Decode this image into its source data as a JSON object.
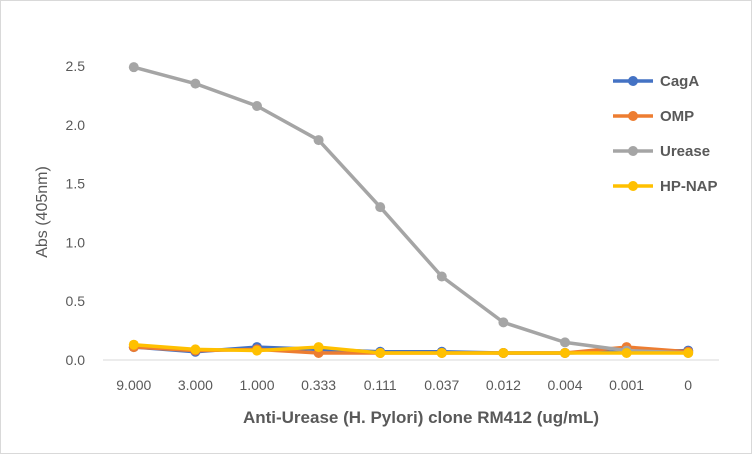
{
  "chart_data": {
    "type": "line",
    "title": "",
    "xlabel": "Anti-Urease (H. Pylori) clone RM412 (ug/mL)",
    "ylabel": "Abs (405nm)",
    "categories": [
      "9.000",
      "3.000",
      "1.000",
      "0.333",
      "0.111",
      "0.037",
      "0.012",
      "0.004",
      "0.001",
      "0"
    ],
    "ylim": [
      0,
      2.5
    ],
    "yticks": [
      "0.0",
      "0.5",
      "1.0",
      "1.5",
      "2.0",
      "2.5"
    ],
    "grid": false,
    "legend": "right",
    "series": [
      {
        "name": "CagA",
        "color": "#4472C4",
        "values": [
          0.11,
          0.07,
          0.11,
          0.09,
          0.07,
          0.07,
          0.06,
          0.06,
          0.07,
          0.08
        ]
      },
      {
        "name": "OMP",
        "color": "#ED7D31",
        "values": [
          0.11,
          0.08,
          0.09,
          0.06,
          0.06,
          0.06,
          0.06,
          0.06,
          0.11,
          0.07
        ]
      },
      {
        "name": "Urease",
        "color": "#A5A5A5",
        "values": [
          2.49,
          2.35,
          2.16,
          1.87,
          1.3,
          0.71,
          0.32,
          0.15,
          0.08,
          0.06
        ]
      },
      {
        "name": "HP-NAP",
        "color": "#FFC000",
        "values": [
          0.13,
          0.09,
          0.08,
          0.11,
          0.06,
          0.06,
          0.06,
          0.06,
          0.06,
          0.06
        ]
      }
    ]
  }
}
